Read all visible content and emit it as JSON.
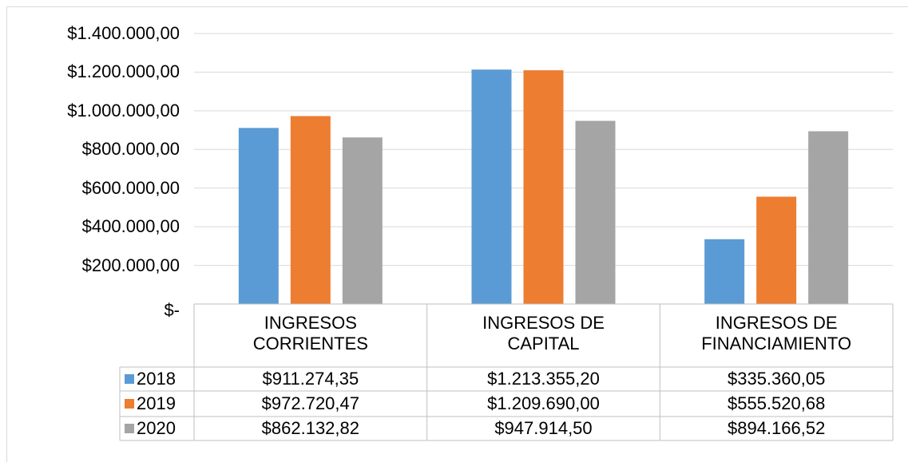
{
  "chart_data": {
    "type": "bar",
    "categories": [
      "INGRESOS\nCORRIENTES",
      "INGRESOS DE\nCAPITAL",
      "INGRESOS DE\nFINANCIAMIENTO"
    ],
    "series": [
      {
        "name": "2018",
        "color": "#5b9bd5",
        "values": [
          911274.35,
          1213355.2,
          335360.05
        ],
        "value_labels": [
          "$911.274,35",
          "$1.213.355,20",
          "$335.360,05"
        ]
      },
      {
        "name": "2019",
        "color": "#ed7d31",
        "values": [
          972720.47,
          1209690.0,
          555520.68
        ],
        "value_labels": [
          "$972.720,47",
          "$1.209.690,00",
          "$555.520,68"
        ]
      },
      {
        "name": "2020",
        "color": "#a5a5a5",
        "values": [
          862132.82,
          947914.5,
          894166.52
        ],
        "value_labels": [
          "$862.132,82",
          "$947.914,50",
          "$894.166,52"
        ]
      }
    ],
    "ylim": [
      0,
      1400000
    ],
    "yticks": [
      {
        "value": 0,
        "label": "$-"
      },
      {
        "value": 200000,
        "label": "$200.000,00"
      },
      {
        "value": 400000,
        "label": "$400.000,00"
      },
      {
        "value": 600000,
        "label": "$600.000,00"
      },
      {
        "value": 800000,
        "label": "$800.000,00"
      },
      {
        "value": 1000000,
        "label": "$1.000.000,00"
      },
      {
        "value": 1200000,
        "label": "$1.200.000,00"
      },
      {
        "value": 1400000,
        "label": "$1.400.000,00"
      }
    ],
    "grid": true,
    "data_table": true
  }
}
